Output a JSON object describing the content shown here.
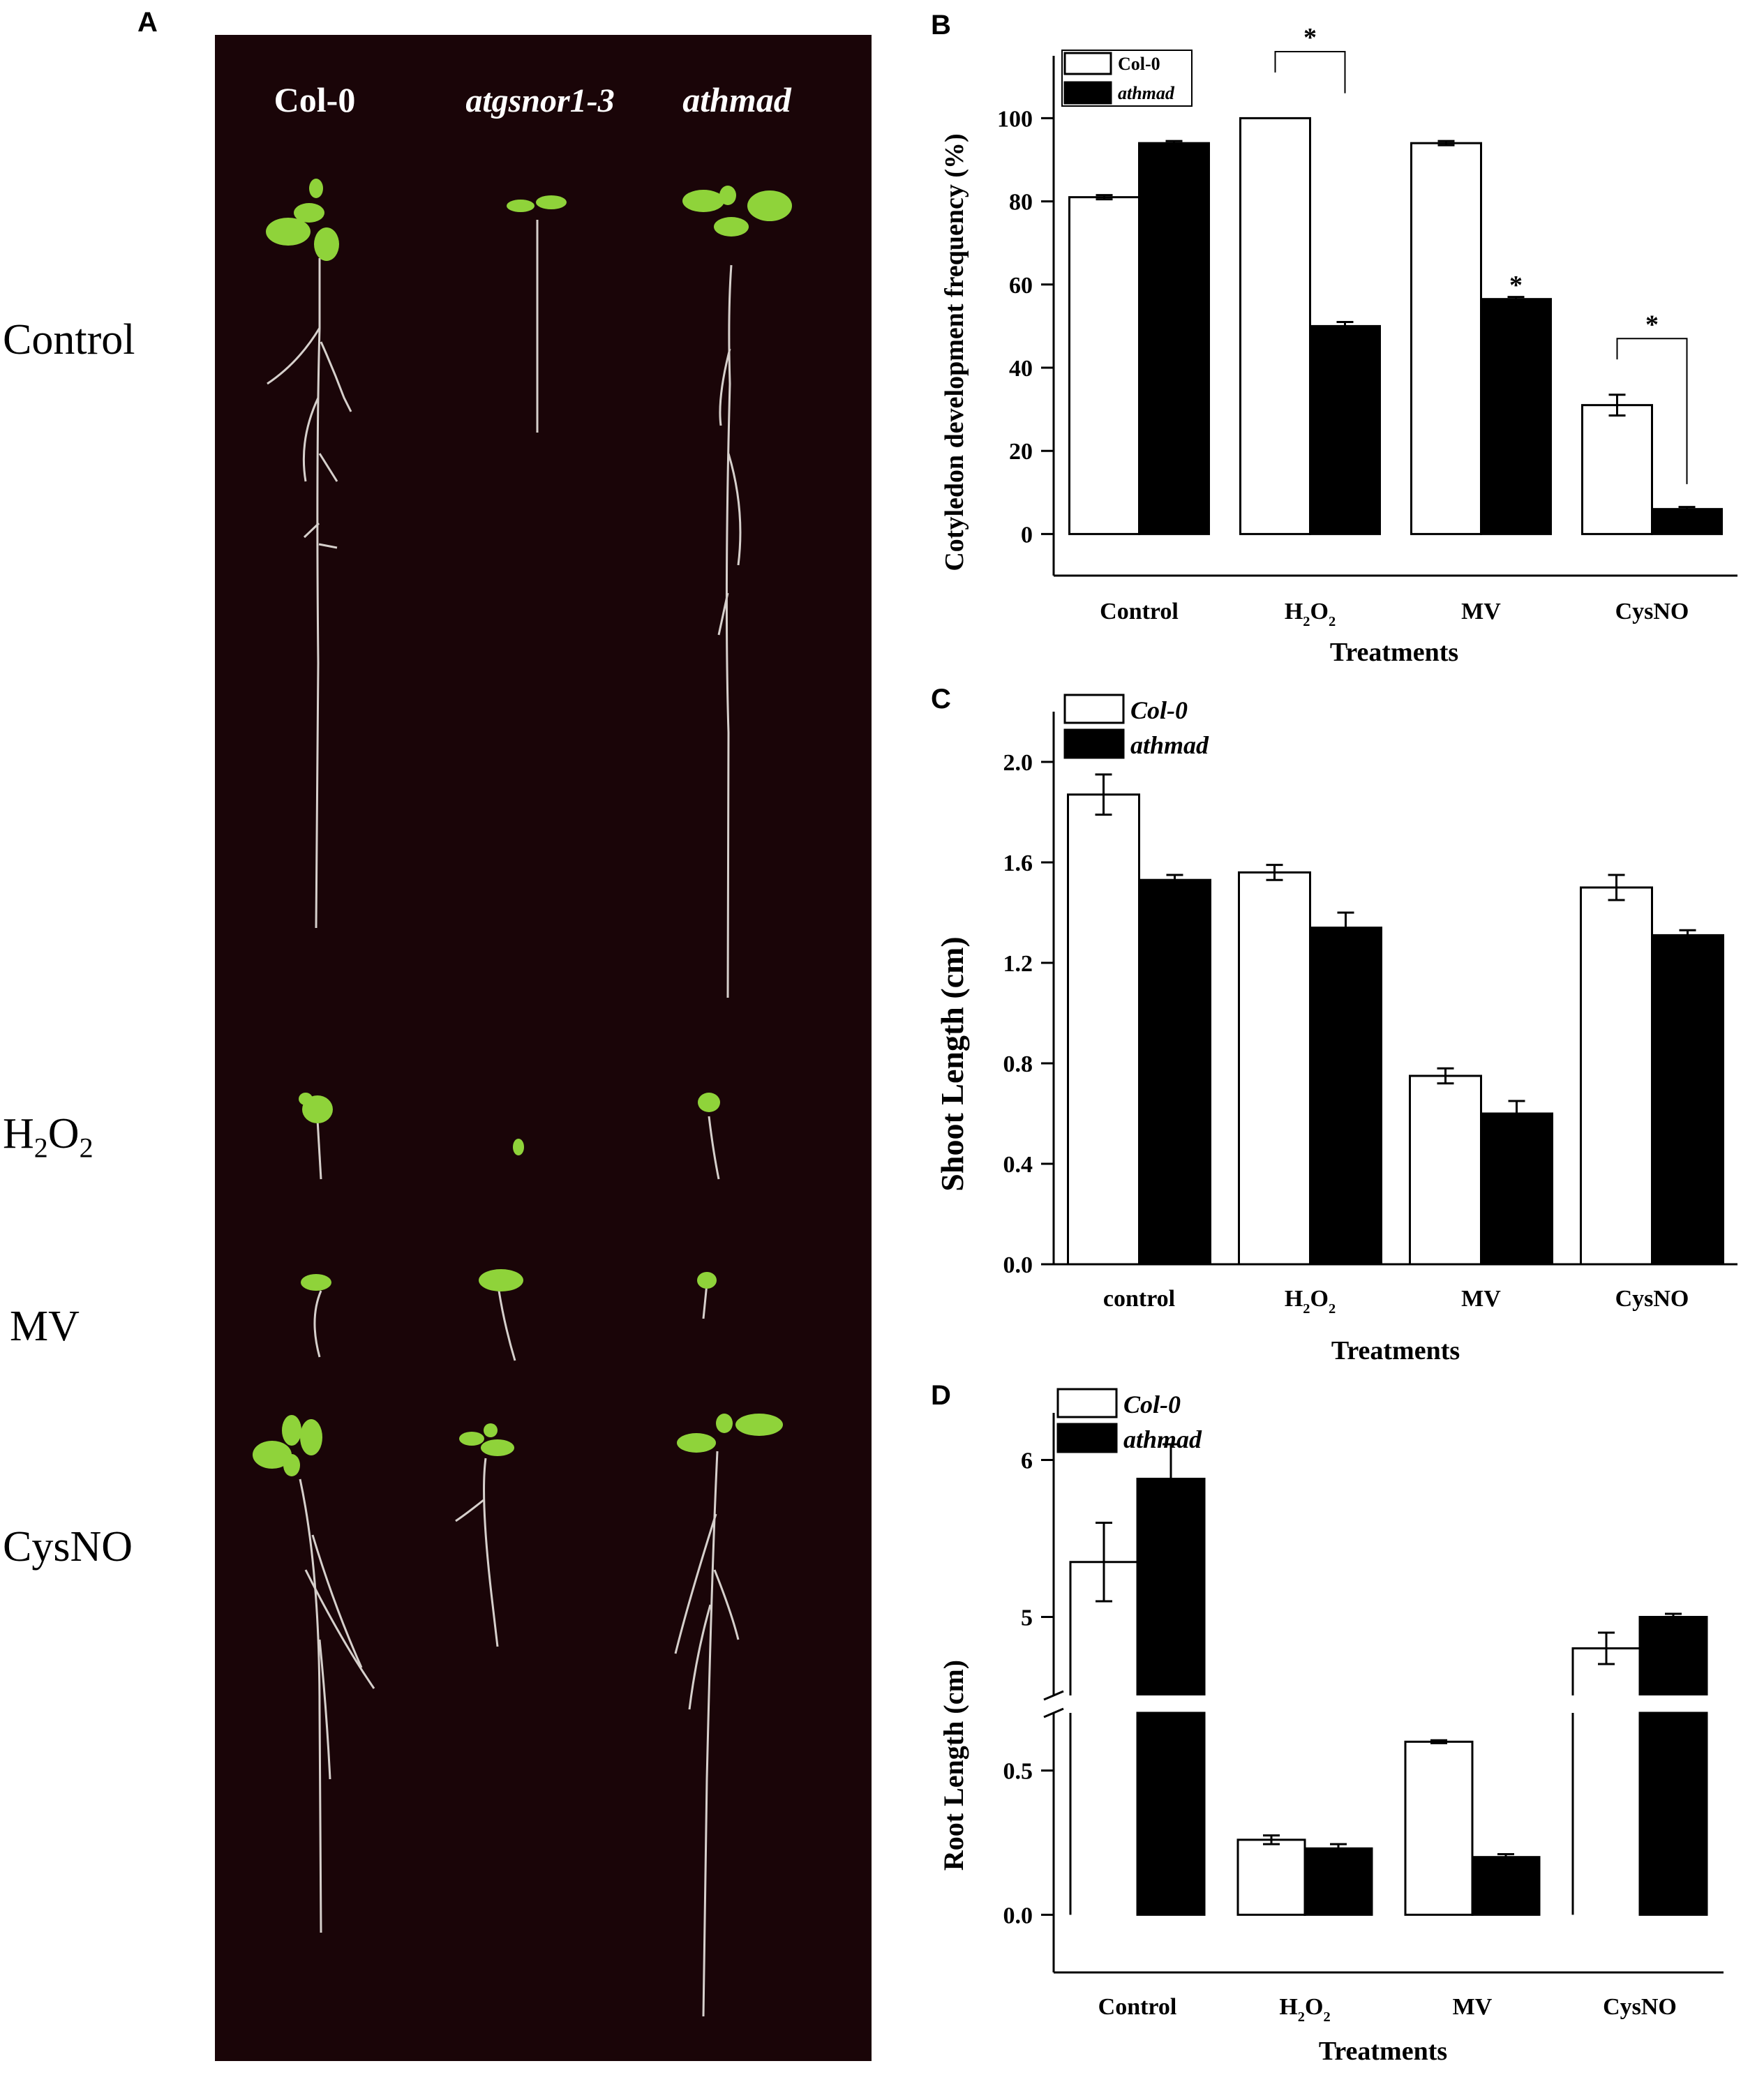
{
  "panel_labels": {
    "A": "A",
    "B": "B",
    "C": "C",
    "D": "D"
  },
  "photo": {
    "genotypes": [
      "Col-0",
      "atgsnor1-3",
      "athmad"
    ],
    "rows": [
      "Control",
      "H2O2",
      "MV",
      "CysNO"
    ],
    "colors": {
      "background": "#1a0508",
      "leaf": "#8fd33a",
      "root": "#d9d9d9",
      "label": "#ffffff"
    }
  },
  "chart_data": [
    {
      "id": "B",
      "type": "bar",
      "title": "",
      "xlabel": "Treatments",
      "ylabel": "Cotyledon development frequency (%)",
      "categories": [
        "Control",
        "H2O2",
        "MV",
        "CysNO"
      ],
      "ylim": [
        -10,
        115
      ],
      "yticks": [
        0,
        20,
        40,
        60,
        80,
        100
      ],
      "series": [
        {
          "name": "Col-0",
          "fill": "#ffffff",
          "values": [
            81,
            100,
            94,
            31
          ],
          "errors": [
            0.5,
            0,
            0.5,
            2.5
          ]
        },
        {
          "name": "athmad",
          "fill": "#000000",
          "values": [
            94,
            50,
            56.5,
            6
          ],
          "errors": [
            0.5,
            1,
            0.5,
            0.5
          ]
        }
      ],
      "significance": [
        "",
        "*",
        "*",
        "*"
      ],
      "legend": "top-left"
    },
    {
      "id": "C",
      "type": "bar",
      "title": "",
      "xlabel": "Treatments",
      "ylabel": "Shoot Length (cm)",
      "categories": [
        "control",
        "H2O2",
        "MV",
        "CysNO"
      ],
      "ylim": [
        0,
        2.2
      ],
      "yticks": [
        0.0,
        0.4,
        0.8,
        1.2,
        1.6,
        2.0
      ],
      "series": [
        {
          "name": "Col-0",
          "fill": "#ffffff",
          "values": [
            1.87,
            1.56,
            0.75,
            1.5
          ],
          "errors": [
            0.08,
            0.03,
            0.03,
            0.05
          ]
        },
        {
          "name": "athmad",
          "fill": "#000000",
          "values": [
            1.53,
            1.34,
            0.6,
            1.31
          ],
          "errors": [
            0.02,
            0.06,
            0.05,
            0.02
          ]
        }
      ],
      "legend": "top-left"
    },
    {
      "id": "D",
      "type": "bar",
      "title": "",
      "xlabel": "Treatments",
      "ylabel": "Root Length (cm)",
      "categories": [
        "Control",
        "H2O2",
        "MV",
        "CysNO"
      ],
      "axis_break": true,
      "lower_ylim": [
        -0.2,
        0.7
      ],
      "upper_ylim": [
        4.5,
        6.3
      ],
      "lower_ticks": [
        0.0,
        0.5
      ],
      "upper_ticks": [
        5,
        6
      ],
      "series": [
        {
          "name": "Col-0",
          "fill": "#ffffff",
          "values": [
            5.35,
            0.26,
            0.6,
            4.8
          ],
          "errors": [
            0.25,
            0.015,
            0.005,
            0.1
          ]
        },
        {
          "name": "athmad",
          "fill": "#000000",
          "values": [
            5.88,
            0.23,
            0.2,
            5.0
          ],
          "errors": [
            0.22,
            0.015,
            0.01,
            0.02
          ]
        }
      ],
      "legend": "top-left"
    }
  ]
}
